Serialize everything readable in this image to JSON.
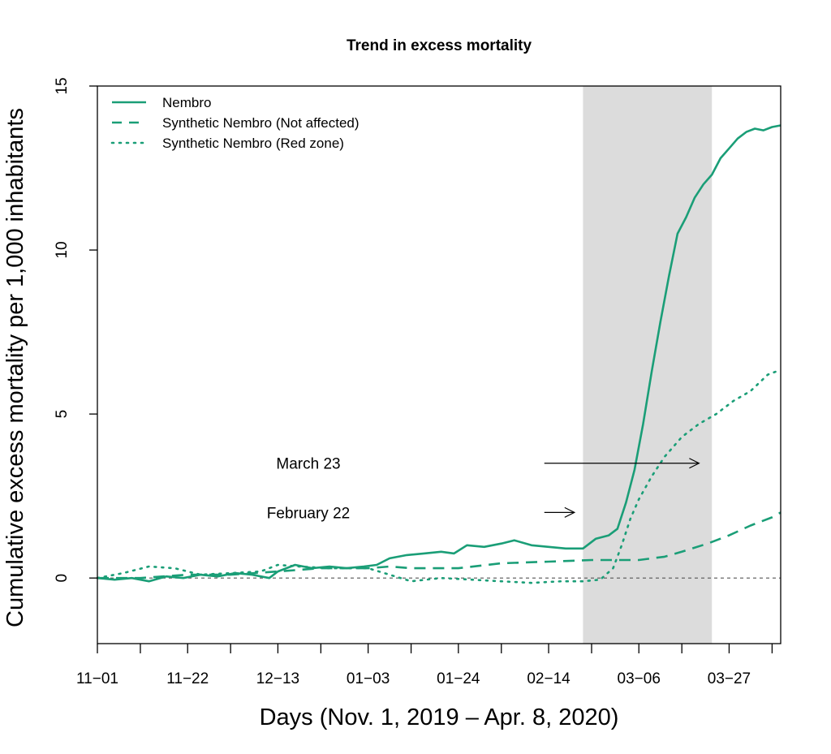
{
  "chart_data": {
    "type": "line",
    "title": "Trend in excess mortality",
    "xlabel": "Days (Nov. 1, 2019 – Apr. 8, 2020)",
    "ylabel": "Cumulative excess mortality per 1,000 inhabitants",
    "xlim": [
      "2019-11-01",
      "2020-04-08"
    ],
    "ylim": [
      -2,
      15
    ],
    "x_ticks": [
      "2019-11-01",
      "2019-11-11",
      "2019-11-22",
      "2019-12-02",
      "2019-12-13",
      "2019-12-23",
      "2020-01-03",
      "2020-01-13",
      "2020-01-24",
      "2020-02-03",
      "2020-02-14",
      "2020-02-24",
      "2020-03-06",
      "2020-03-16",
      "2020-03-27",
      "2020-04-06"
    ],
    "x_tick_labels": [
      "11−01",
      "11−22",
      "12−13",
      "01−03",
      "01−24",
      "02−14",
      "03−06",
      "03−27"
    ],
    "x_tick_label_dates": [
      "2019-11-01",
      "2019-11-22",
      "2019-12-13",
      "2020-01-03",
      "2020-01-24",
      "2020-02-14",
      "2020-03-06",
      "2020-03-27"
    ],
    "y_ticks": [
      0,
      5,
      10,
      15
    ],
    "y_tick_labels": [
      "0",
      "5",
      "10",
      "15"
    ],
    "reference_line": 0,
    "shaded_period": {
      "from": "2020-02-22",
      "to": "2020-03-23",
      "color": "#dcdcdc"
    },
    "legend_position": "top-left",
    "line_color": "#1a9e77",
    "series": [
      {
        "name": "Nembro",
        "style": "solid",
        "points": [
          [
            "2019-11-01",
            0.0
          ],
          [
            "2019-11-05",
            -0.05
          ],
          [
            "2019-11-09",
            0.0
          ],
          [
            "2019-11-13",
            -0.1
          ],
          [
            "2019-11-17",
            0.05
          ],
          [
            "2019-11-21",
            0.0
          ],
          [
            "2019-11-25",
            0.1
          ],
          [
            "2019-11-29",
            0.05
          ],
          [
            "2019-12-03",
            0.15
          ],
          [
            "2019-12-07",
            0.1
          ],
          [
            "2019-12-11",
            0.0
          ],
          [
            "2019-12-13",
            0.2
          ],
          [
            "2019-12-17",
            0.4
          ],
          [
            "2019-12-21",
            0.3
          ],
          [
            "2019-12-25",
            0.35
          ],
          [
            "2019-12-29",
            0.3
          ],
          [
            "2020-01-02",
            0.35
          ],
          [
            "2020-01-05",
            0.4
          ],
          [
            "2020-01-08",
            0.6
          ],
          [
            "2020-01-12",
            0.7
          ],
          [
            "2020-01-16",
            0.75
          ],
          [
            "2020-01-20",
            0.8
          ],
          [
            "2020-01-23",
            0.75
          ],
          [
            "2020-01-26",
            1.0
          ],
          [
            "2020-01-30",
            0.95
          ],
          [
            "2020-02-03",
            1.05
          ],
          [
            "2020-02-06",
            1.15
          ],
          [
            "2020-02-10",
            1.0
          ],
          [
            "2020-02-14",
            0.95
          ],
          [
            "2020-02-18",
            0.9
          ],
          [
            "2020-02-22",
            0.9
          ],
          [
            "2020-02-25",
            1.2
          ],
          [
            "2020-02-28",
            1.3
          ],
          [
            "2020-03-01",
            1.5
          ],
          [
            "2020-03-03",
            2.3
          ],
          [
            "2020-03-05",
            3.3
          ],
          [
            "2020-03-07",
            4.7
          ],
          [
            "2020-03-09",
            6.3
          ],
          [
            "2020-03-11",
            7.8
          ],
          [
            "2020-03-13",
            9.2
          ],
          [
            "2020-03-15",
            10.5
          ],
          [
            "2020-03-17",
            11.0
          ],
          [
            "2020-03-19",
            11.6
          ],
          [
            "2020-03-21",
            12.0
          ],
          [
            "2020-03-23",
            12.3
          ],
          [
            "2020-03-25",
            12.8
          ],
          [
            "2020-03-27",
            13.1
          ],
          [
            "2020-03-29",
            13.4
          ],
          [
            "2020-03-31",
            13.6
          ],
          [
            "2020-04-02",
            13.7
          ],
          [
            "2020-04-04",
            13.65
          ],
          [
            "2020-04-06",
            13.75
          ],
          [
            "2020-04-08",
            13.8
          ]
        ]
      },
      {
        "name": "Synthetic Nembro (Not affected)",
        "style": "dashed",
        "points": [
          [
            "2019-11-01",
            0.0
          ],
          [
            "2019-11-11",
            0.0
          ],
          [
            "2019-11-22",
            0.1
          ],
          [
            "2019-12-02",
            0.1
          ],
          [
            "2019-12-13",
            0.2
          ],
          [
            "2019-12-23",
            0.3
          ],
          [
            "2020-01-03",
            0.3
          ],
          [
            "2020-01-08",
            0.35
          ],
          [
            "2020-01-13",
            0.3
          ],
          [
            "2020-01-24",
            0.3
          ],
          [
            "2020-02-03",
            0.45
          ],
          [
            "2020-02-14",
            0.5
          ],
          [
            "2020-02-24",
            0.55
          ],
          [
            "2020-03-06",
            0.55
          ],
          [
            "2020-03-12",
            0.65
          ],
          [
            "2020-03-16",
            0.8
          ],
          [
            "2020-03-22",
            1.05
          ],
          [
            "2020-03-27",
            1.3
          ],
          [
            "2020-04-01",
            1.6
          ],
          [
            "2020-04-06",
            1.85
          ],
          [
            "2020-04-08",
            2.0
          ]
        ]
      },
      {
        "name": "Synthetic Nembro (Red zone)",
        "style": "dotted",
        "points": [
          [
            "2019-11-01",
            0.0
          ],
          [
            "2019-11-07",
            0.15
          ],
          [
            "2019-11-13",
            0.35
          ],
          [
            "2019-11-19",
            0.3
          ],
          [
            "2019-11-25",
            0.1
          ],
          [
            "2019-12-02",
            0.15
          ],
          [
            "2019-12-09",
            0.2
          ],
          [
            "2019-12-13",
            0.4
          ],
          [
            "2019-12-18",
            0.35
          ],
          [
            "2019-12-25",
            0.3
          ],
          [
            "2020-01-03",
            0.3
          ],
          [
            "2020-01-08",
            0.1
          ],
          [
            "2020-01-13",
            -0.1
          ],
          [
            "2020-01-20",
            0.0
          ],
          [
            "2020-01-27",
            -0.05
          ],
          [
            "2020-02-03",
            -0.1
          ],
          [
            "2020-02-10",
            -0.15
          ],
          [
            "2020-02-17",
            -0.1
          ],
          [
            "2020-02-22",
            -0.1
          ],
          [
            "2020-02-26",
            -0.05
          ],
          [
            "2020-02-29",
            0.3
          ],
          [
            "2020-03-02",
            1.0
          ],
          [
            "2020-03-04",
            1.8
          ],
          [
            "2020-03-06",
            2.4
          ],
          [
            "2020-03-09",
            3.1
          ],
          [
            "2020-03-12",
            3.7
          ],
          [
            "2020-03-16",
            4.3
          ],
          [
            "2020-03-20",
            4.7
          ],
          [
            "2020-03-24",
            5.0
          ],
          [
            "2020-03-28",
            5.4
          ],
          [
            "2020-04-01",
            5.7
          ],
          [
            "2020-04-05",
            6.2
          ],
          [
            "2020-04-08",
            6.35
          ]
        ]
      }
    ],
    "annotations": [
      {
        "text": "March 23",
        "y": 3.5,
        "arrow_from": "2020-02-13",
        "arrow_to": "2020-03-20"
      },
      {
        "text": "February 22",
        "y": 2.0,
        "arrow_from": "2020-02-13",
        "arrow_to": "2020-02-20"
      }
    ]
  }
}
